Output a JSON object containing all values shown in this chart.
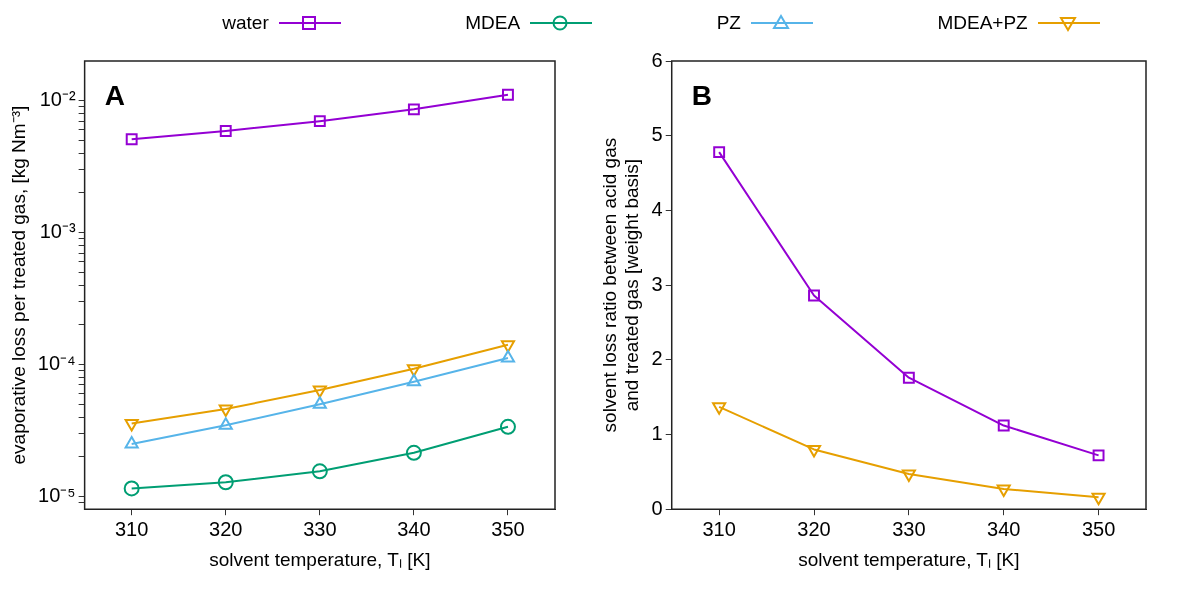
{
  "chart_data": [
    {
      "type": "line",
      "annotations": [
        "A"
      ],
      "xlabel": "solvent temperature, Tₗ [K]",
      "ylabel": "evaporative loss per treated gas, [kg Nm⁻³]",
      "x": [
        310,
        320,
        330,
        340,
        350
      ],
      "xlim": [
        305,
        355
      ],
      "xticks": [
        310,
        320,
        330,
        340,
        350
      ],
      "log": "y",
      "ylim": [
        8e-06,
        0.02
      ],
      "yticks": [
        {
          "value": 9e-06,
          "label": null
        },
        {
          "value": 1e-05,
          "label": "10⁻⁵"
        },
        {
          "value": 2e-05,
          "label": null
        },
        {
          "value": 3e-05,
          "label": null
        },
        {
          "value": 4e-05,
          "label": null
        },
        {
          "value": 5e-05,
          "label": null
        },
        {
          "value": 6e-05,
          "label": null
        },
        {
          "value": 7e-05,
          "label": null
        },
        {
          "value": 8e-05,
          "label": null
        },
        {
          "value": 9e-05,
          "label": null
        },
        {
          "value": 0.0001,
          "label": "10⁻⁴"
        },
        {
          "value": 0.0002,
          "label": null
        },
        {
          "value": 0.0003,
          "label": null
        },
        {
          "value": 0.0004,
          "label": null
        },
        {
          "value": 0.0005,
          "label": null
        },
        {
          "value": 0.0006,
          "label": null
        },
        {
          "value": 0.0007,
          "label": null
        },
        {
          "value": 0.0008,
          "label": null
        },
        {
          "value": 0.0009,
          "label": null
        },
        {
          "value": 0.001,
          "label": "10⁻³"
        },
        {
          "value": 0.002,
          "label": null
        },
        {
          "value": 0.003,
          "label": null
        },
        {
          "value": 0.004,
          "label": null
        },
        {
          "value": 0.005,
          "label": null
        },
        {
          "value": 0.006,
          "label": null
        },
        {
          "value": 0.007,
          "label": null
        },
        {
          "value": 0.008,
          "label": null
        },
        {
          "value": 0.009,
          "label": null
        },
        {
          "value": 0.01,
          "label": "10⁻²"
        }
      ],
      "grid": false,
      "legend": "top",
      "line_style": "solid",
      "series": [
        {
          "name": "water",
          "color": "#9400d3",
          "marker": "square",
          "values": [
            0.0051,
            0.0059,
            0.007,
            0.0086,
            0.0111
          ]
        },
        {
          "name": "MDEA",
          "color": "#009e73",
          "marker": "circle",
          "values": [
            1.15e-05,
            1.28e-05,
            1.55e-05,
            2.14e-05,
            3.37e-05
          ]
        },
        {
          "name": "PZ",
          "color": "#56b4e9",
          "marker": "triangle",
          "values": [
            2.5e-05,
            3.46e-05,
            5e-05,
            7.4e-05,
            0.000112
          ]
        },
        {
          "name": "MDEA+PZ",
          "color": "#e69f00",
          "marker": "triangle-down",
          "values": [
            3.57e-05,
            4.6e-05,
            6.4e-05,
            9.3e-05,
            0.000141
          ]
        }
      ]
    },
    {
      "type": "line",
      "annotations": [
        "B"
      ],
      "xlabel": "solvent temperature, Tₗ [K]",
      "ylabel": "solvent loss ratio between acid gas\nand treated gas [weight basis]",
      "x": [
        310,
        320,
        330,
        340,
        350
      ],
      "xlim": [
        305,
        355
      ],
      "xticks": [
        310,
        320,
        330,
        340,
        350
      ],
      "ylim": [
        0,
        6
      ],
      "yticks": [
        0,
        1,
        2,
        3,
        4,
        5,
        6
      ],
      "grid": false,
      "line_style": "solid",
      "series": [
        {
          "color": "#9400d3",
          "marker": "square",
          "values": [
            4.78,
            2.86,
            1.76,
            1.12,
            0.72
          ]
        },
        {
          "color": "#e69f00",
          "marker": "triangle-down",
          "values": [
            1.37,
            0.8,
            0.47,
            0.27,
            0.16
          ]
        }
      ]
    }
  ]
}
